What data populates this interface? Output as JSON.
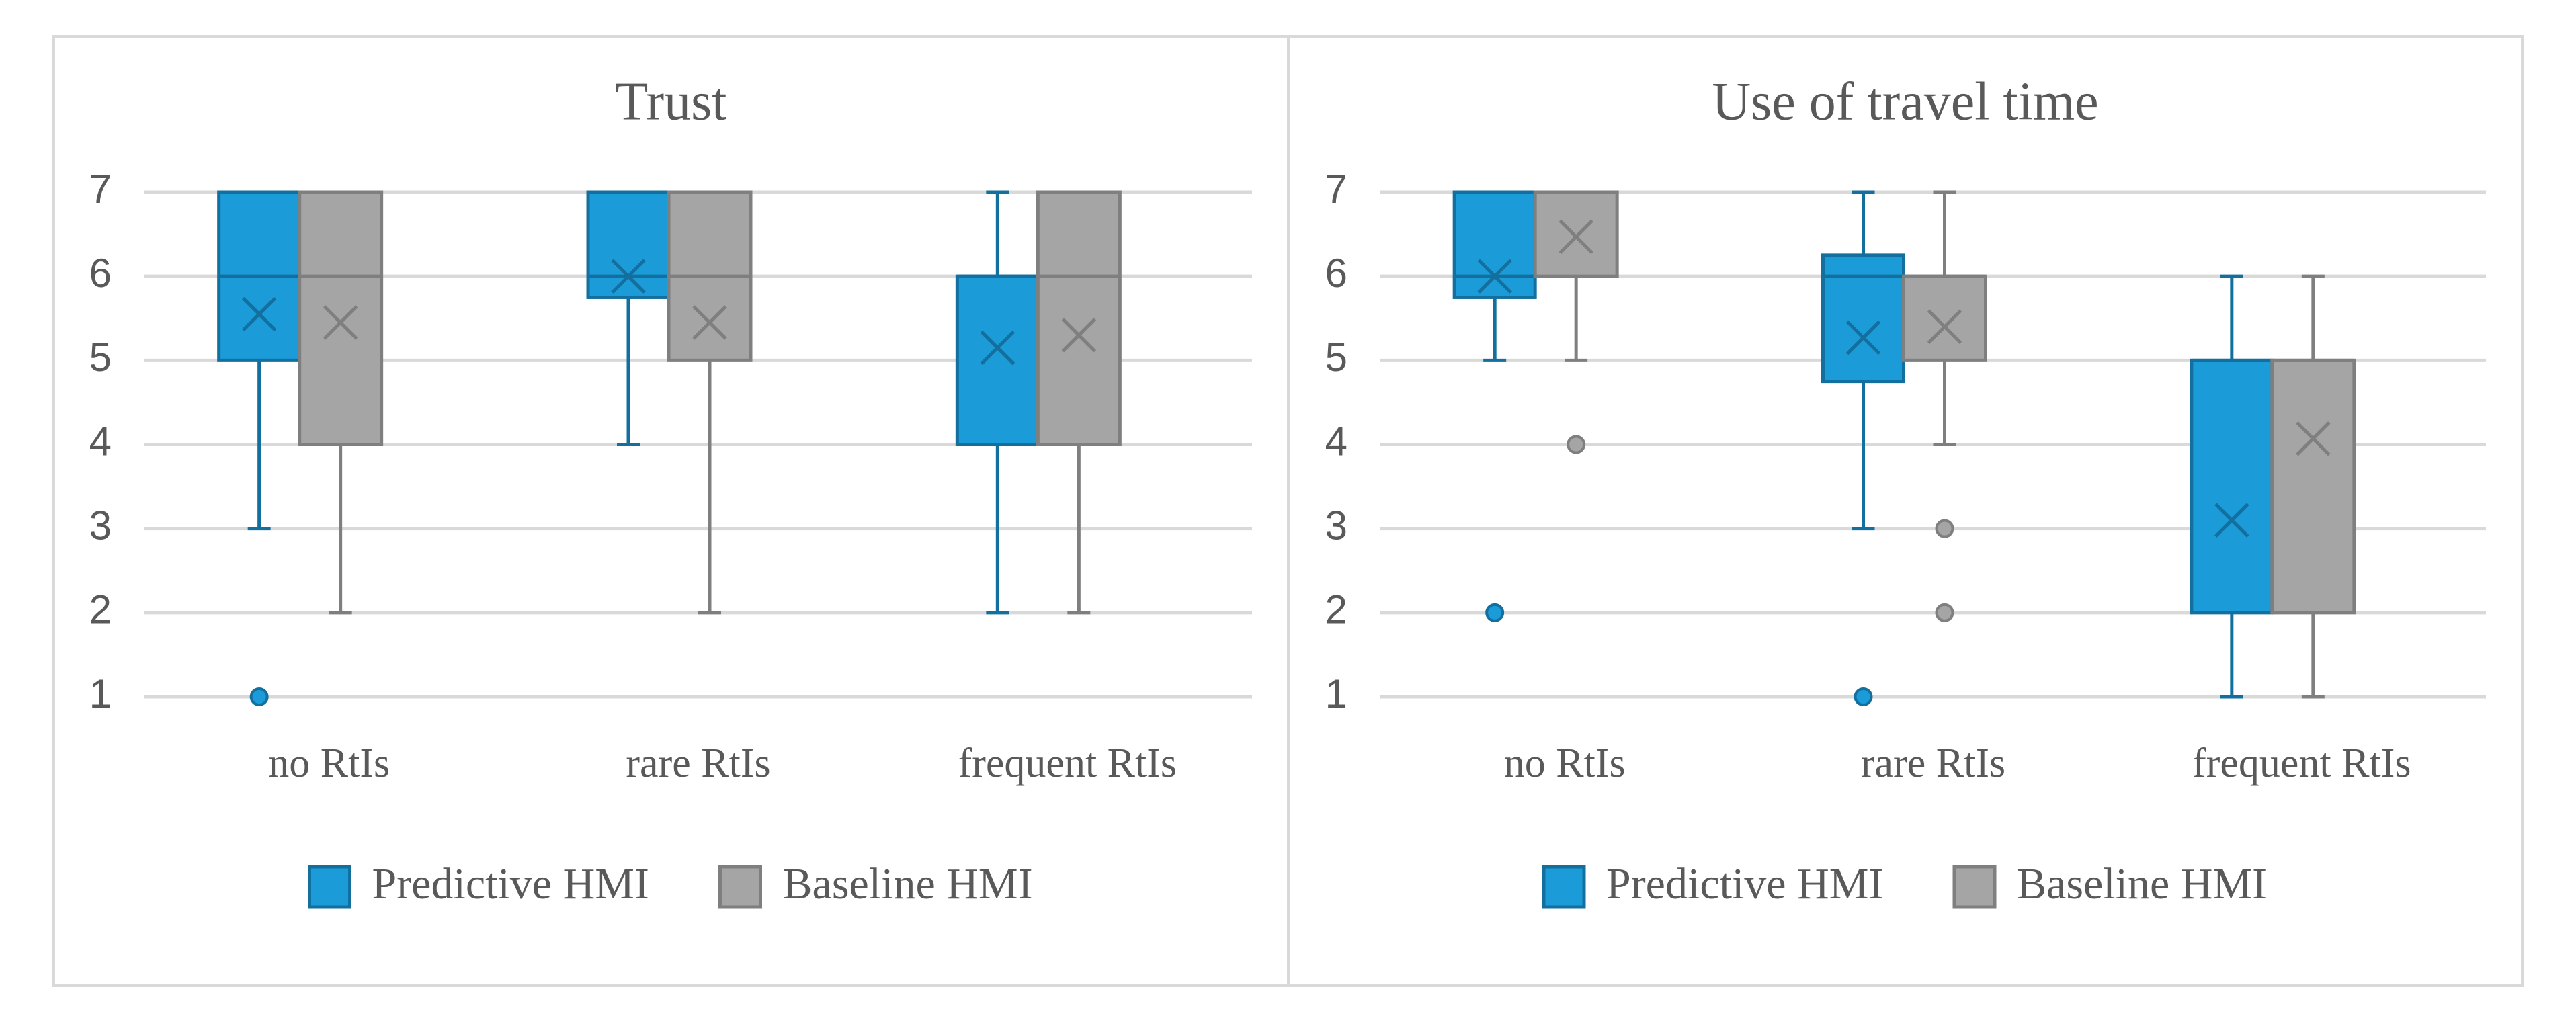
{
  "chart_data": [
    {
      "type": "box",
      "title": "Trust",
      "categories": [
        "no RtIs",
        "rare RtIs",
        "frequent RtIs"
      ],
      "ylim": [
        1,
        7
      ],
      "yticks": [
        1,
        2,
        3,
        4,
        5,
        6,
        7
      ],
      "grid": true,
      "legend": "bottom",
      "series": [
        {
          "name": "Predictive HMI",
          "color": "#1b9cd8",
          "edge_color": "#126f9e",
          "min": [
            3,
            4,
            2
          ],
          "q1": [
            5,
            5.75,
            4
          ],
          "median": [
            6,
            6,
            6
          ],
          "q3": [
            7,
            7,
            6
          ],
          "max": [
            7,
            7,
            7
          ],
          "mean": [
            5.55,
            6.0,
            5.15
          ],
          "outliers": [
            [
              1
            ],
            [],
            []
          ]
        },
        {
          "name": "Baseline HMI",
          "color": "#a5a5a5",
          "edge_color": "#7f7f7f",
          "min": [
            2,
            2,
            2
          ],
          "q1": [
            4,
            5,
            4
          ],
          "median": [
            6,
            6,
            6
          ],
          "q3": [
            7,
            7,
            7
          ],
          "max": [
            7,
            7,
            7
          ],
          "mean": [
            5.45,
            5.45,
            5.3
          ],
          "outliers": [
            [],
            [],
            []
          ]
        }
      ]
    },
    {
      "type": "box",
      "title": "Use of travel time",
      "categories": [
        "no RtIs",
        "rare RtIs",
        "frequent RtIs"
      ],
      "ylim": [
        1,
        7
      ],
      "yticks": [
        1,
        2,
        3,
        4,
        5,
        6,
        7
      ],
      "grid": true,
      "legend": "bottom",
      "series": [
        {
          "name": "Predictive HMI",
          "color": "#1b9cd8",
          "edge_color": "#126f9e",
          "min": [
            5,
            3,
            1
          ],
          "q1": [
            5.75,
            4.75,
            2
          ],
          "median": [
            6,
            6,
            5
          ],
          "q3": [
            7,
            6.25,
            5
          ],
          "max": [
            7,
            7,
            6
          ],
          "mean": [
            6.0,
            5.27,
            3.1
          ],
          "outliers": [
            [
              2
            ],
            [
              1
            ],
            []
          ]
        },
        {
          "name": "Baseline HMI",
          "color": "#a5a5a5",
          "edge_color": "#7f7f7f",
          "min": [
            5,
            4,
            1
          ],
          "q1": [
            6,
            5,
            2
          ],
          "median": [
            7,
            6,
            5
          ],
          "q3": [
            7,
            6,
            5
          ],
          "max": [
            7,
            7,
            6
          ],
          "mean": [
            6.47,
            5.4,
            4.07
          ],
          "outliers": [
            [
              4
            ],
            [
              3,
              2
            ],
            []
          ]
        }
      ]
    }
  ]
}
